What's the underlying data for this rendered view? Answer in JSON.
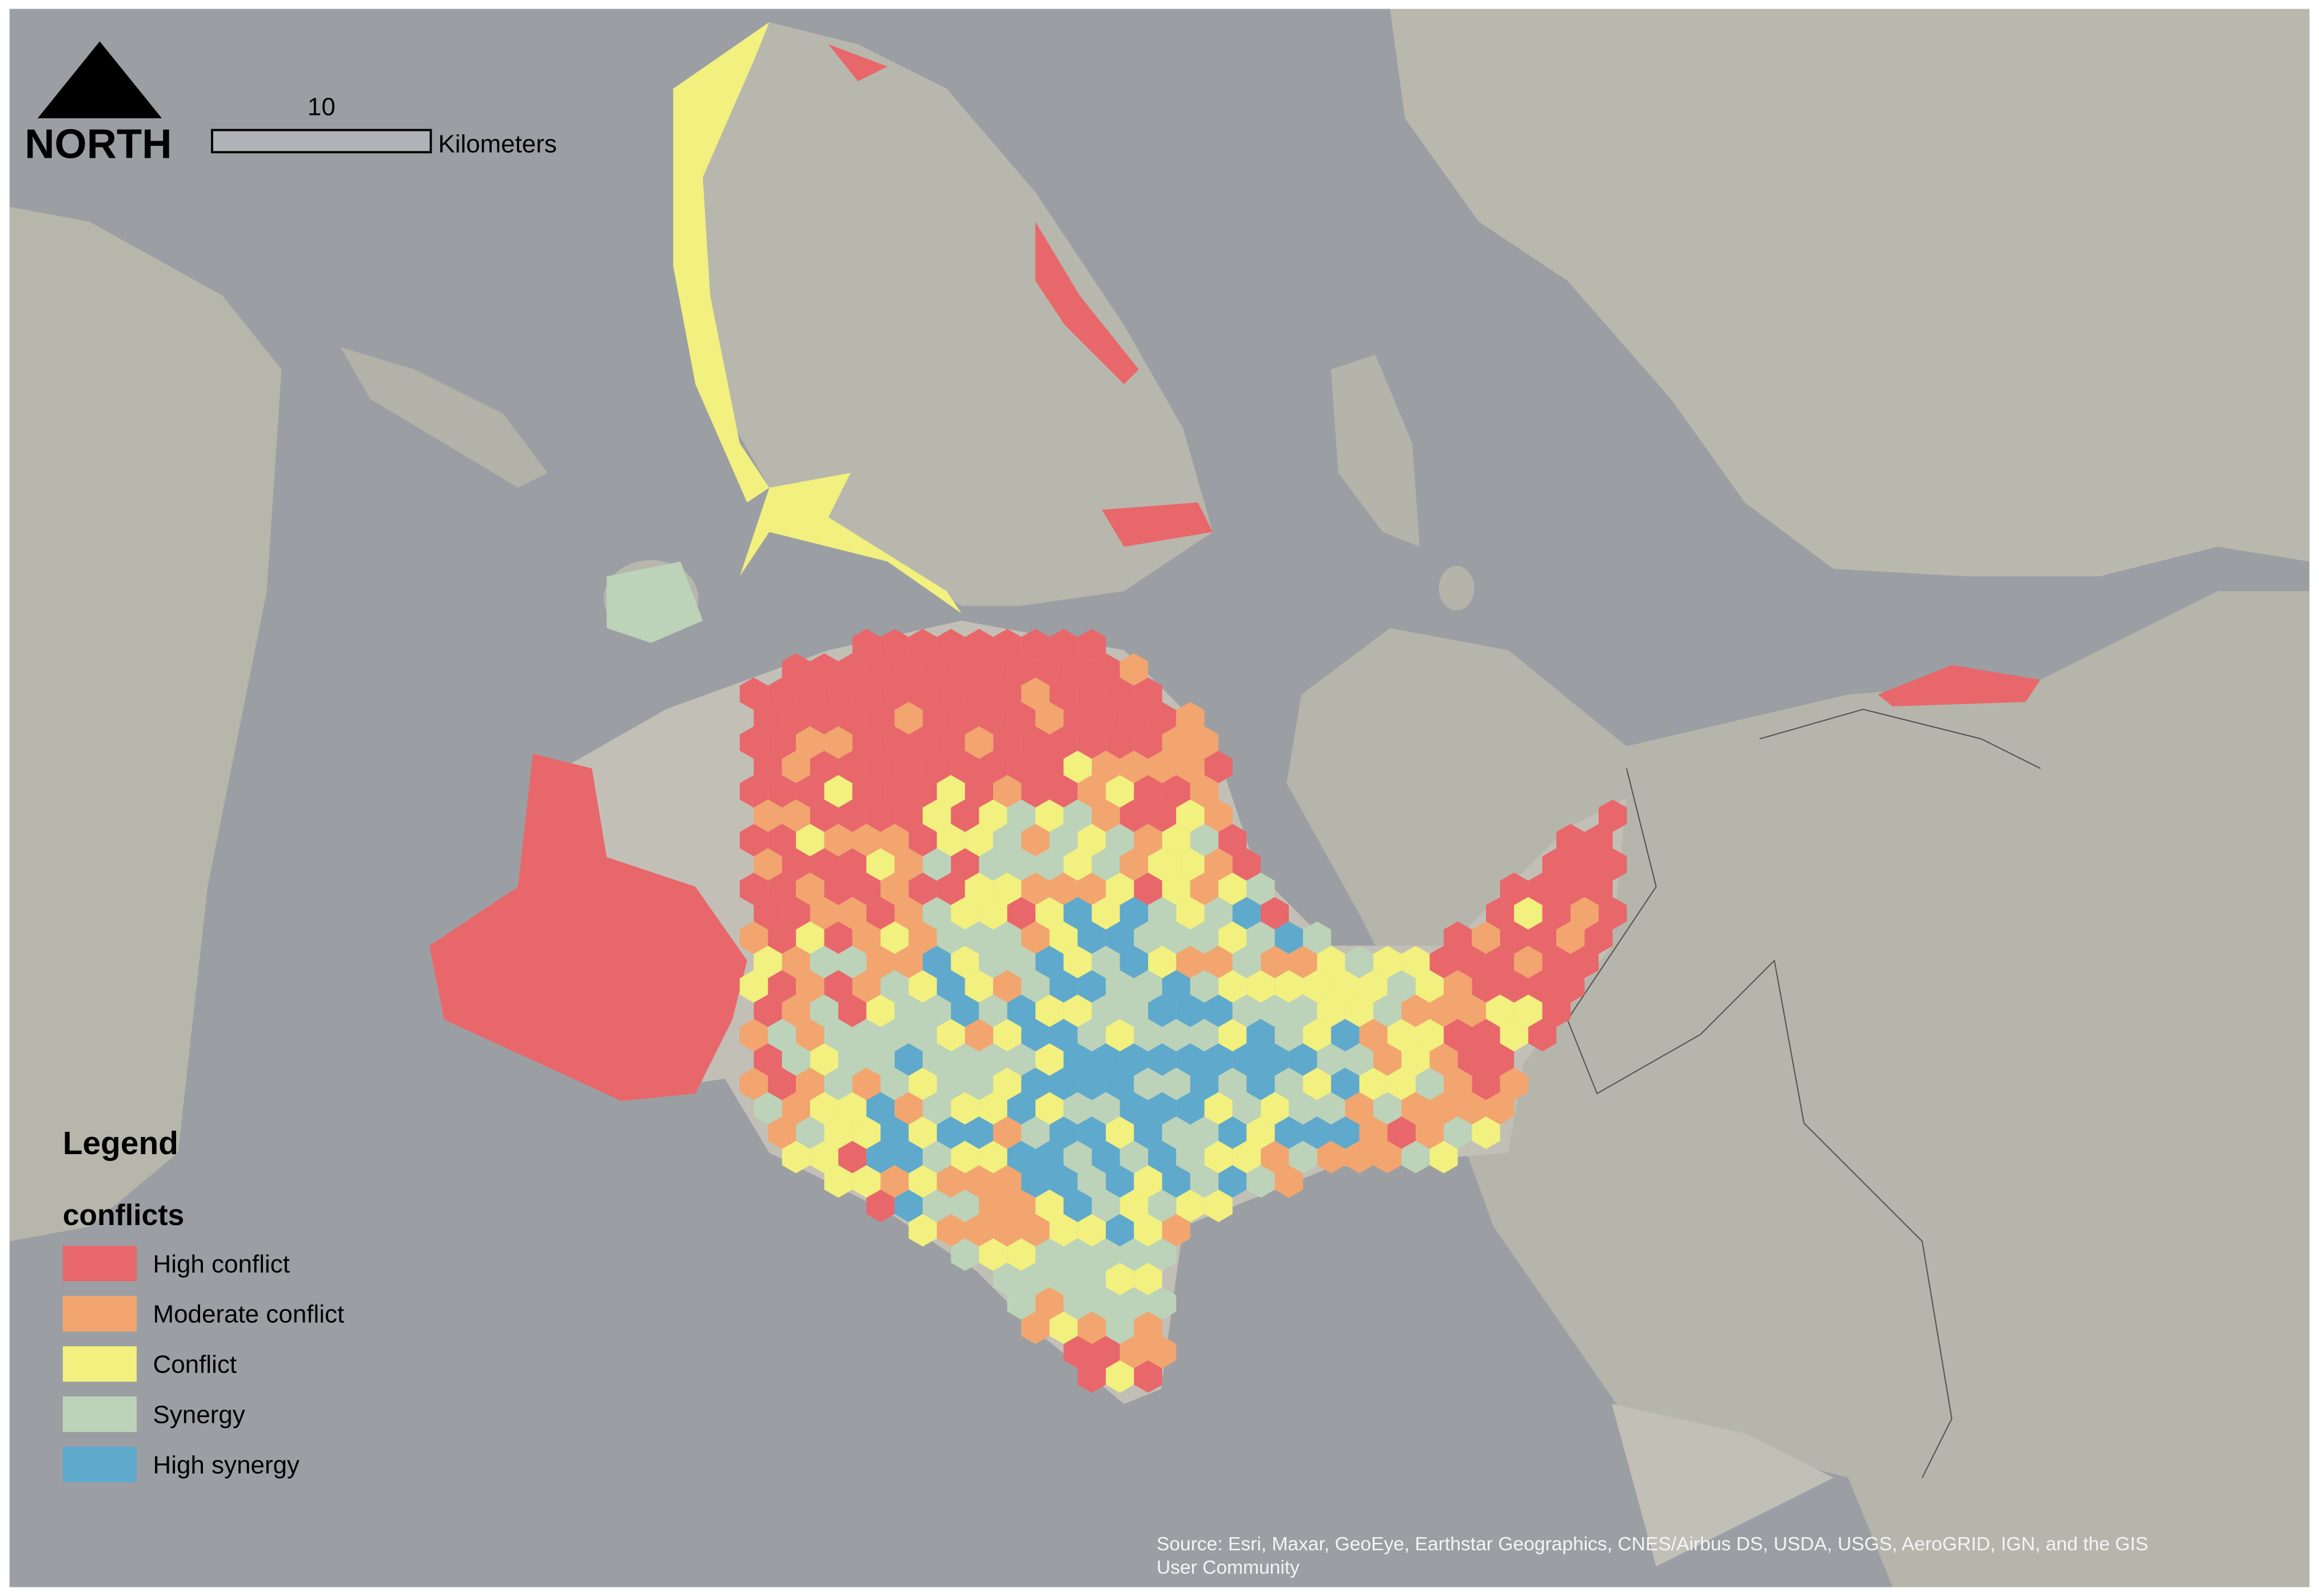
{
  "north_arrow": {
    "label": "NORTH"
  },
  "scale_bar": {
    "value": 10,
    "unit": "Kilometers"
  },
  "legend": {
    "title": "Legend",
    "layer": "conflicts",
    "items": [
      {
        "label": "High conflict",
        "color": "#e8676b"
      },
      {
        "label": "Moderate conflict",
        "color": "#f2a56f"
      },
      {
        "label": "Conflict",
        "color": "#f2f07e"
      },
      {
        "label": "Synergy",
        "color": "#bcd3b9"
      },
      {
        "label": "High synergy",
        "color": "#5fa9cc"
      }
    ]
  },
  "source": [
    "Source: Esri, Maxar, GeoEye, Earthstar Geographics, CNES/Airbus DS, USDA, USGS, AeroGRID, IGN, and the GIS",
    "User Community"
  ]
}
